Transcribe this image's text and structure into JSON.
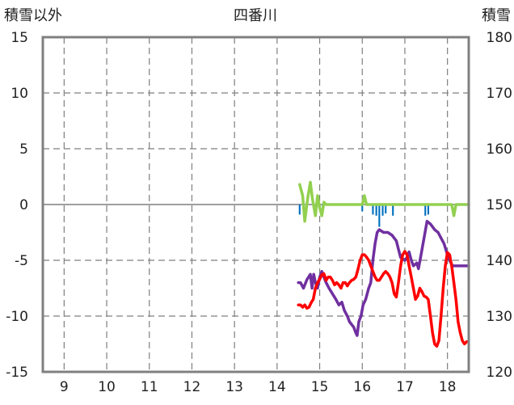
{
  "chart_data": {
    "type": "line",
    "title": "四番川",
    "ylabel_left": "積雪以外",
    "ylabel_right": "積雪",
    "x_range": [
      8.5,
      18.5
    ],
    "x_ticks": [
      9,
      10,
      11,
      12,
      13,
      14,
      15,
      16,
      17,
      18
    ],
    "ylim_left": [
      -15,
      15
    ],
    "y_ticks_left": [
      15,
      10,
      5,
      0,
      -5,
      -10,
      -15
    ],
    "ylim_right": [
      120,
      180
    ],
    "y_ticks_right": [
      180,
      170,
      160,
      150,
      140,
      130,
      120
    ],
    "grid": true,
    "grid_style": "dashed",
    "legend": "none",
    "series": [
      {
        "color": "#92d050",
        "axis": "left",
        "points": [
          [
            14.53,
            1.8
          ],
          [
            14.6,
            0.8
          ],
          [
            14.65,
            -1.5
          ],
          [
            14.72,
            0.6
          ],
          [
            14.78,
            2.0
          ],
          [
            14.83,
            0.5
          ],
          [
            14.9,
            -1.0
          ],
          [
            14.95,
            0.8
          ],
          [
            15.0,
            -0.3
          ],
          [
            15.05,
            -1.0
          ],
          [
            15.1,
            0.2
          ],
          [
            15.15,
            0
          ],
          [
            15.5,
            0
          ],
          [
            16.0,
            0
          ],
          [
            16.05,
            0.8
          ],
          [
            16.1,
            0
          ],
          [
            16.5,
            0
          ],
          [
            17.0,
            0
          ],
          [
            17.5,
            0
          ],
          [
            18.0,
            0
          ],
          [
            18.1,
            0
          ],
          [
            18.15,
            -1.0
          ],
          [
            18.2,
            0
          ],
          [
            18.5,
            0
          ]
        ]
      },
      {
        "color": "#7030a0",
        "axis": "right",
        "points": [
          [
            14.5,
            136.0
          ],
          [
            14.55,
            136.0
          ],
          [
            14.62,
            135.0
          ],
          [
            14.7,
            136.5
          ],
          [
            14.78,
            137.5
          ],
          [
            14.82,
            135.0
          ],
          [
            14.86,
            137.5
          ],
          [
            14.9,
            136.0
          ],
          [
            14.95,
            135.0
          ],
          [
            15.0,
            137.0
          ],
          [
            15.05,
            138.0
          ],
          [
            15.1,
            137.0
          ],
          [
            15.15,
            136.0
          ],
          [
            15.22,
            135.0
          ],
          [
            15.3,
            134.0
          ],
          [
            15.38,
            133.0
          ],
          [
            15.45,
            132.0
          ],
          [
            15.52,
            132.5
          ],
          [
            15.58,
            131.0
          ],
          [
            15.65,
            130.0
          ],
          [
            15.7,
            129.0
          ],
          [
            15.75,
            128.5
          ],
          [
            15.8,
            128.0
          ],
          [
            15.85,
            127.0
          ],
          [
            15.88,
            126.5
          ],
          [
            15.92,
            129.0
          ],
          [
            15.97,
            130.0
          ],
          [
            16.02,
            132.0
          ],
          [
            16.08,
            133.0
          ],
          [
            16.15,
            135.0
          ],
          [
            16.2,
            136.0
          ],
          [
            16.25,
            140.0
          ],
          [
            16.3,
            143.0
          ],
          [
            16.35,
            145.0
          ],
          [
            16.4,
            145.5
          ],
          [
            16.5,
            145.0
          ],
          [
            16.6,
            145.0
          ],
          [
            16.7,
            144.5
          ],
          [
            16.8,
            143.5
          ],
          [
            16.85,
            142.0
          ],
          [
            16.9,
            140.5
          ],
          [
            17.0,
            140.0
          ],
          [
            17.05,
            140.5
          ],
          [
            17.1,
            141.5
          ],
          [
            17.15,
            140.0
          ],
          [
            17.2,
            139.0
          ],
          [
            17.28,
            139.5
          ],
          [
            17.32,
            138.5
          ],
          [
            17.38,
            141.0
          ],
          [
            17.45,
            144.0
          ],
          [
            17.52,
            147.0
          ],
          [
            17.6,
            146.5
          ],
          [
            17.7,
            145.5
          ],
          [
            17.78,
            145.0
          ],
          [
            17.85,
            144.0
          ],
          [
            17.92,
            143.0
          ],
          [
            18.0,
            141.0
          ],
          [
            18.05,
            140.0
          ],
          [
            18.12,
            139.0
          ],
          [
            18.18,
            139.0
          ],
          [
            18.25,
            139.0
          ],
          [
            18.3,
            139.0
          ],
          [
            18.35,
            139.0
          ],
          [
            18.42,
            139.0
          ],
          [
            18.5,
            139.0
          ]
        ]
      },
      {
        "color": "#ff0000",
        "axis": "left",
        "points": [
          [
            14.5,
            -9.0
          ],
          [
            14.55,
            -9.0
          ],
          [
            14.6,
            -9.2
          ],
          [
            14.65,
            -9.0
          ],
          [
            14.7,
            -9.3
          ],
          [
            14.75,
            -9.2
          ],
          [
            14.8,
            -8.8
          ],
          [
            14.85,
            -8.5
          ],
          [
            14.9,
            -7.5
          ],
          [
            14.95,
            -7.0
          ],
          [
            15.0,
            -6.7
          ],
          [
            15.05,
            -6.3
          ],
          [
            15.1,
            -6.2
          ],
          [
            15.15,
            -6.8
          ],
          [
            15.2,
            -6.5
          ],
          [
            15.25,
            -6.5
          ],
          [
            15.3,
            -6.8
          ],
          [
            15.35,
            -7.2
          ],
          [
            15.4,
            -7.0
          ],
          [
            15.45,
            -7.2
          ],
          [
            15.5,
            -7.5
          ],
          [
            15.55,
            -7.0
          ],
          [
            15.6,
            -7.0
          ],
          [
            15.65,
            -7.3
          ],
          [
            15.7,
            -7.0
          ],
          [
            15.75,
            -6.8
          ],
          [
            15.8,
            -6.7
          ],
          [
            15.85,
            -6.5
          ],
          [
            15.9,
            -5.8
          ],
          [
            15.95,
            -5.0
          ],
          [
            16.0,
            -4.5
          ],
          [
            16.05,
            -4.5
          ],
          [
            16.1,
            -4.7
          ],
          [
            16.15,
            -5.0
          ],
          [
            16.2,
            -5.5
          ],
          [
            16.25,
            -6.0
          ],
          [
            16.3,
            -6.5
          ],
          [
            16.35,
            -6.8
          ],
          [
            16.4,
            -6.8
          ],
          [
            16.45,
            -6.5
          ],
          [
            16.5,
            -6.2
          ],
          [
            16.55,
            -6.0
          ],
          [
            16.6,
            -6.2
          ],
          [
            16.65,
            -6.5
          ],
          [
            16.7,
            -7.0
          ],
          [
            16.75,
            -8.0
          ],
          [
            16.8,
            -8.3
          ],
          [
            16.85,
            -7.0
          ],
          [
            16.9,
            -5.5
          ],
          [
            16.95,
            -4.5
          ],
          [
            17.0,
            -4.2
          ],
          [
            17.05,
            -4.5
          ],
          [
            17.1,
            -5.5
          ],
          [
            17.15,
            -6.5
          ],
          [
            17.2,
            -7.5
          ],
          [
            17.25,
            -8.5
          ],
          [
            17.3,
            -8.2
          ],
          [
            17.35,
            -7.5
          ],
          [
            17.4,
            -7.8
          ],
          [
            17.45,
            -8.2
          ],
          [
            17.5,
            -8.3
          ],
          [
            17.55,
            -8.5
          ],
          [
            17.6,
            -10.0
          ],
          [
            17.65,
            -11.5
          ],
          [
            17.7,
            -12.5
          ],
          [
            17.75,
            -12.7
          ],
          [
            17.8,
            -12.2
          ],
          [
            17.85,
            -10.0
          ],
          [
            17.9,
            -7.5
          ],
          [
            17.95,
            -5.5
          ],
          [
            18.0,
            -4.3
          ],
          [
            18.05,
            -4.5
          ],
          [
            18.1,
            -5.5
          ],
          [
            18.15,
            -7.0
          ],
          [
            18.2,
            -8.5
          ],
          [
            18.25,
            -10.5
          ],
          [
            18.3,
            -11.5
          ],
          [
            18.35,
            -12.2
          ],
          [
            18.4,
            -12.5
          ],
          [
            18.45,
            -12.3
          ]
        ]
      }
    ],
    "bars": {
      "color": "#0070c0",
      "axis": "left",
      "width": 0.04,
      "items": [
        [
          14.53,
          -0.9
        ],
        [
          15.07,
          -0.8
        ],
        [
          16.0,
          -0.6
        ],
        [
          16.25,
          -0.9
        ],
        [
          16.33,
          -1.0
        ],
        [
          16.4,
          -2.0
        ],
        [
          16.48,
          -1.0
        ],
        [
          16.55,
          -0.8
        ],
        [
          16.72,
          -1.0
        ],
        [
          17.48,
          -1.0
        ],
        [
          17.55,
          -0.9
        ]
      ]
    }
  }
}
